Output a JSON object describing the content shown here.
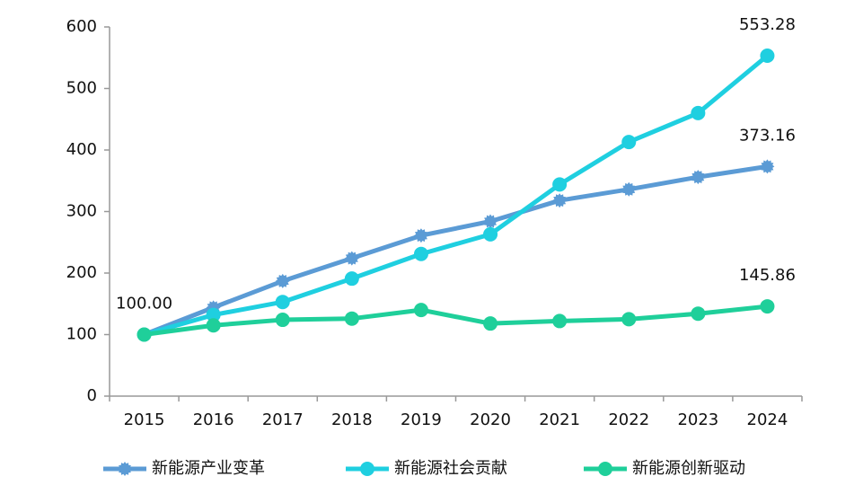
{
  "chart_data": {
    "type": "line",
    "categories": [
      "2015",
      "2016",
      "2017",
      "2018",
      "2019",
      "2020",
      "2021",
      "2022",
      "2023",
      "2024"
    ],
    "series": [
      {
        "name": "新能源产业变革",
        "color": "#5b9bd5",
        "marker": "star",
        "values": [
          100,
          144,
          187,
          224,
          261,
          284,
          318,
          336,
          356,
          373.16
        ],
        "value_labels": [
          "100.00",
          null,
          null,
          null,
          null,
          null,
          null,
          null,
          null,
          "373.16"
        ]
      },
      {
        "name": "新能源社会贡献",
        "color": "#1fcfe0",
        "marker": "circle",
        "values": [
          100,
          132,
          153,
          191,
          231,
          263,
          344,
          413,
          460,
          553.28
        ],
        "value_labels": [
          null,
          null,
          null,
          null,
          null,
          null,
          null,
          null,
          null,
          "553.28"
        ]
      },
      {
        "name": "新能源创新驱动",
        "color": "#1fcf9a",
        "marker": "circle",
        "values": [
          100,
          115,
          124,
          126,
          140,
          118,
          122,
          125,
          134,
          145.86
        ],
        "value_labels": [
          null,
          null,
          null,
          null,
          null,
          null,
          null,
          null,
          null,
          "145.86"
        ]
      }
    ],
    "ylim": [
      0,
      600
    ],
    "yticks": [
      0,
      100,
      200,
      300,
      400,
      500,
      600
    ],
    "grid": false
  }
}
